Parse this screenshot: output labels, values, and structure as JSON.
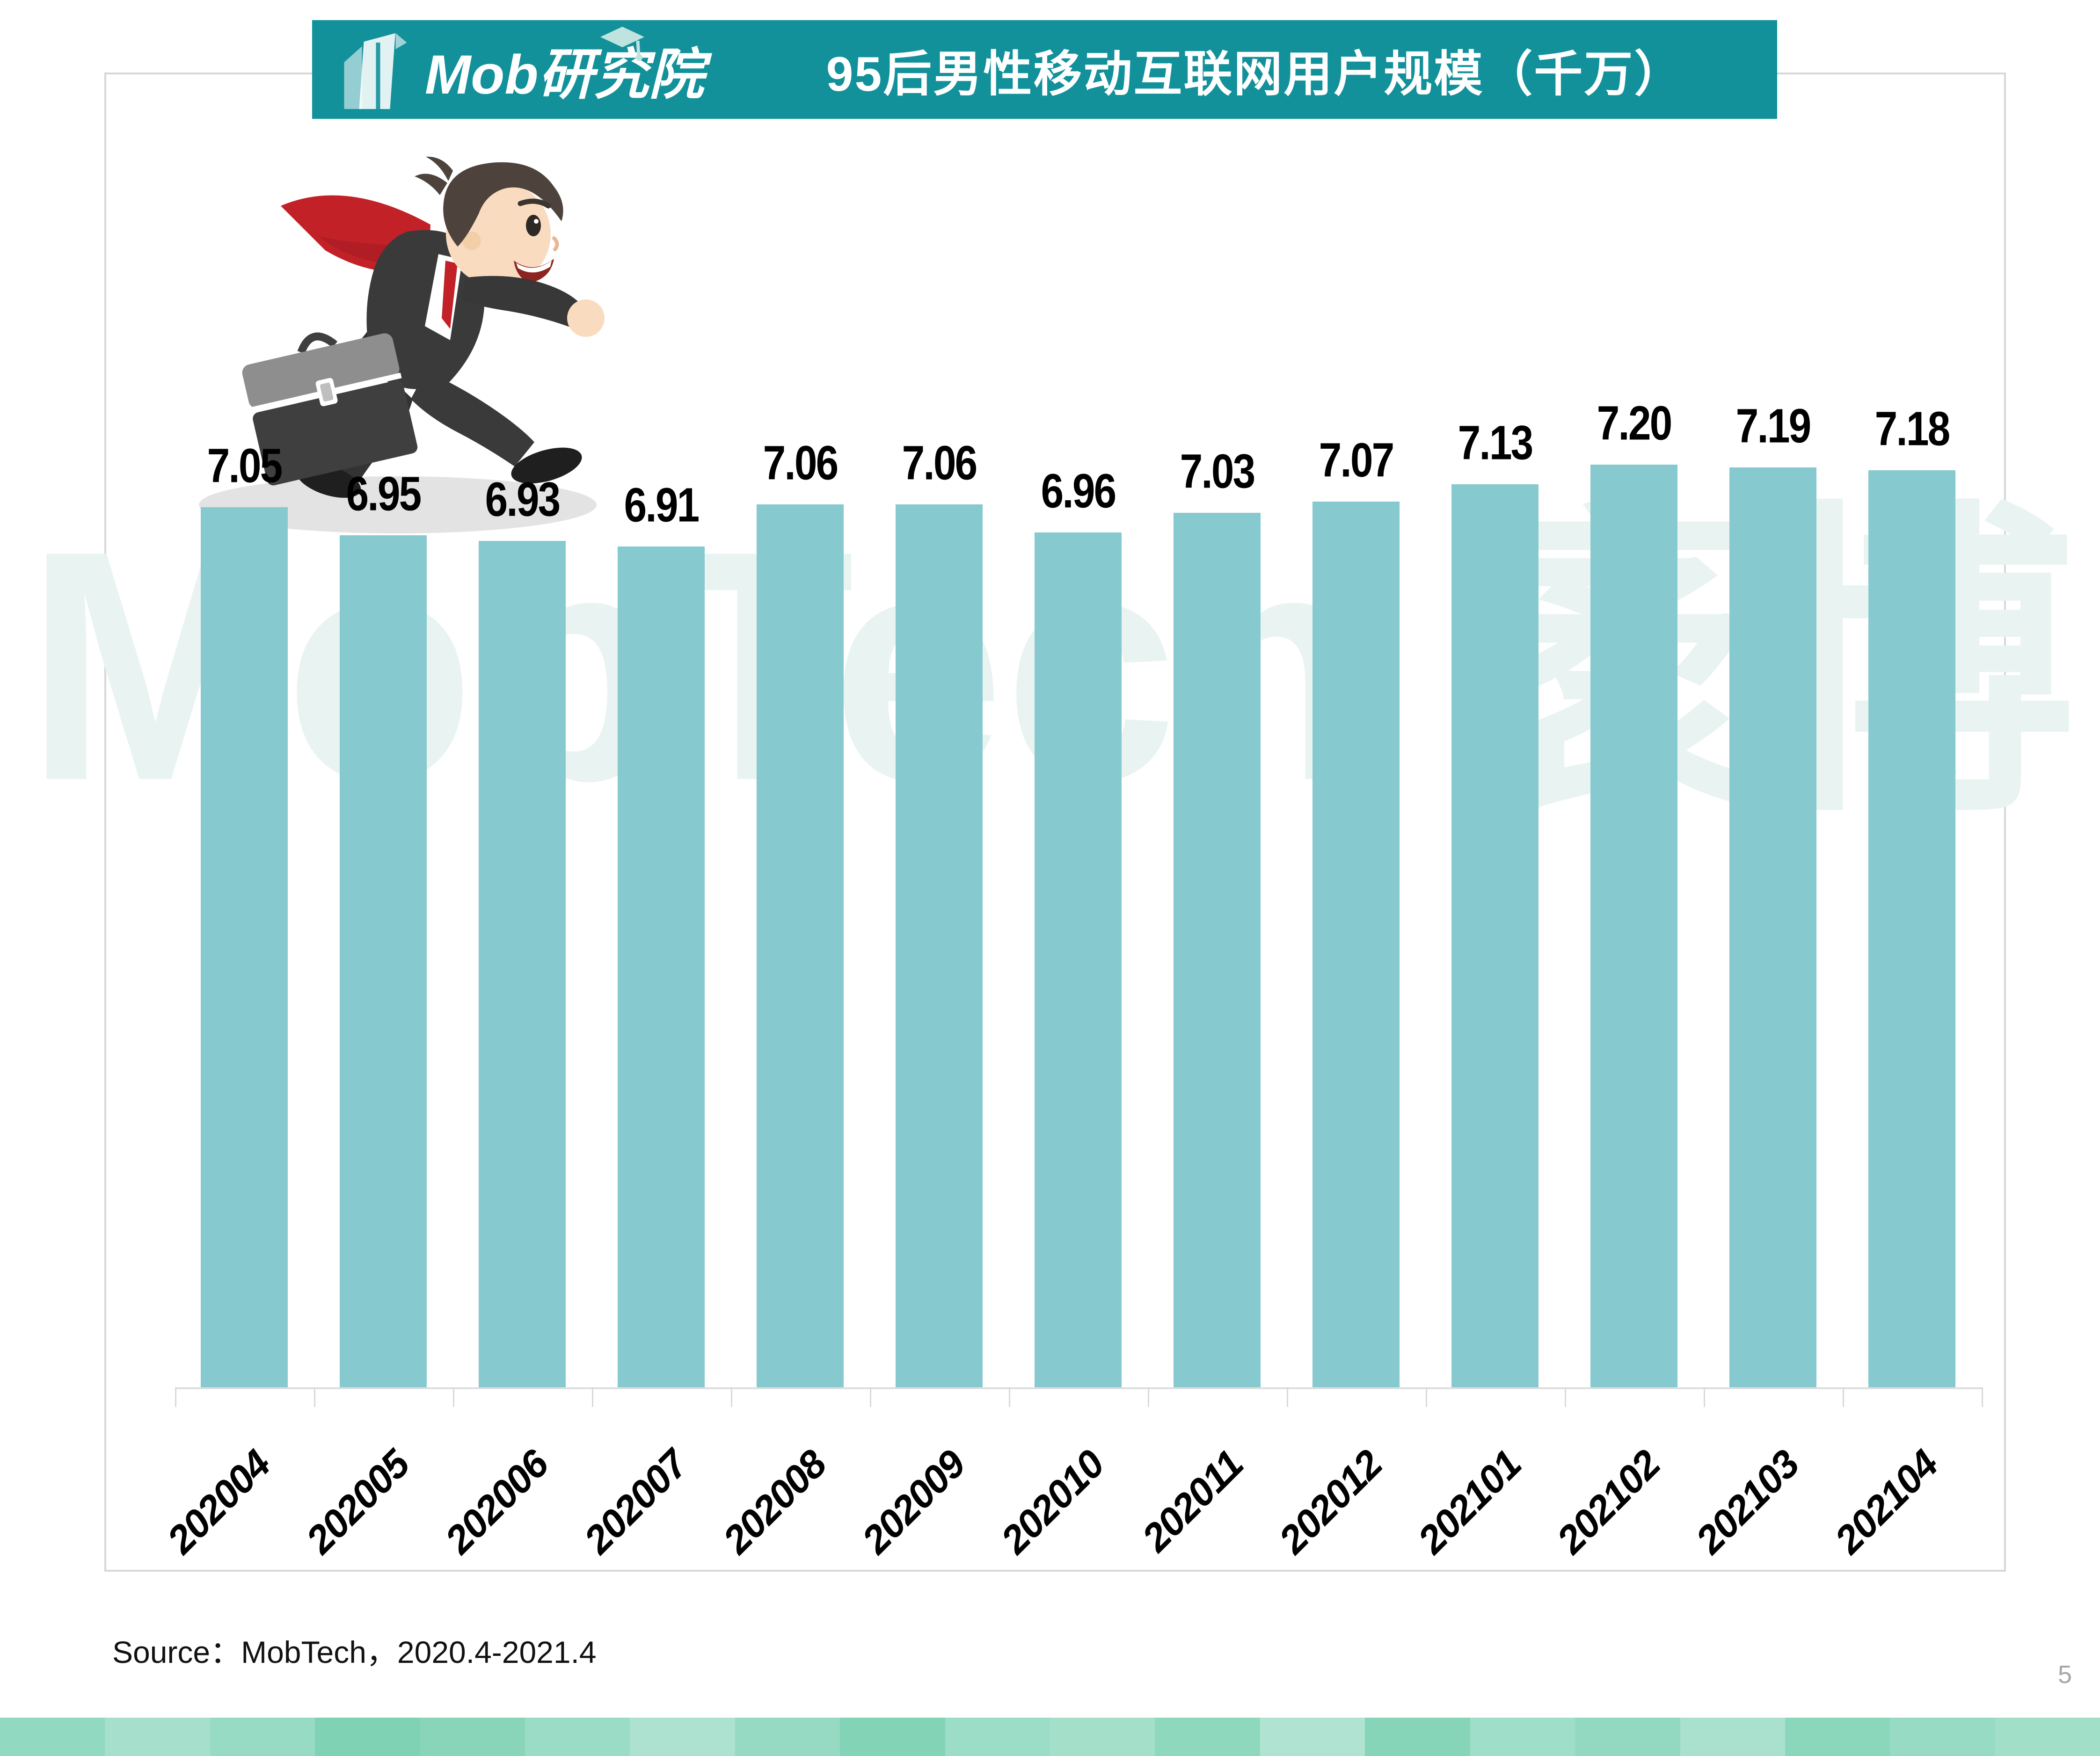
{
  "header": {
    "logo_text": "Mob研究院",
    "title": "95后男性移动互联网用户规模（千万）",
    "banner_color": "#12919b",
    "title_color": "#ffffff"
  },
  "watermark": {
    "text": "MobTech 袤博",
    "color": "#e9f4f2"
  },
  "chart_data": {
    "type": "bar",
    "title": "95后男性移动互联网用户规模（千万）",
    "categories": [
      "202004",
      "202005",
      "202006",
      "202007",
      "202008",
      "202009",
      "202010",
      "202011",
      "202012",
      "202101",
      "202102",
      "202103",
      "202104"
    ],
    "values": [
      7.05,
      6.95,
      6.93,
      6.91,
      7.06,
      7.06,
      6.96,
      7.03,
      7.07,
      7.13,
      7.2,
      7.19,
      7.18
    ],
    "value_labels": [
      "7.05",
      "6.95",
      "6.93",
      "6.91",
      "7.06",
      "7.06",
      "6.96",
      "7.03",
      "7.07",
      "7.13",
      "7.20",
      "7.19",
      "7.18"
    ],
    "xlabel": "",
    "ylabel": "",
    "ylim": [
      3.93,
      7.45
    ],
    "grid": false,
    "legend": false,
    "x_tick_rotation_deg": 45,
    "bar_color": "#86c9cf",
    "axis_color": "#dedede",
    "tick_color": "#d9d9d9",
    "data_label_color": "#000000"
  },
  "illustration": {
    "name": "running-businessman",
    "shadow_color": "#e3e3e3",
    "suit_color": "#3a3a3a",
    "tie_color": "#c32128",
    "skin_color": "#f9dcc0",
    "hair_color": "#4d423c",
    "briefcase_body_color": "#3f3f3f",
    "briefcase_flap_color": "#8e8e8e"
  },
  "footer": {
    "source_text": "Source：MobTech，2020.4-2021.4",
    "page_number": "5"
  },
  "bottom_strip_colors": [
    "#92d9c1",
    "#a6e0cc",
    "#98dbc4",
    "#7fd2b3",
    "#89d5b9",
    "#9bdcc6",
    "#ade2d1",
    "#96dac3",
    "#83d3b6",
    "#9cddc7",
    "#a4dfca",
    "#8ed8be",
    "#b0e3d2",
    "#87d5b8",
    "#9fdec9",
    "#93d9c1",
    "#a9e1ce",
    "#8bd7bc",
    "#97dbc4",
    "#a1dfc9"
  ]
}
